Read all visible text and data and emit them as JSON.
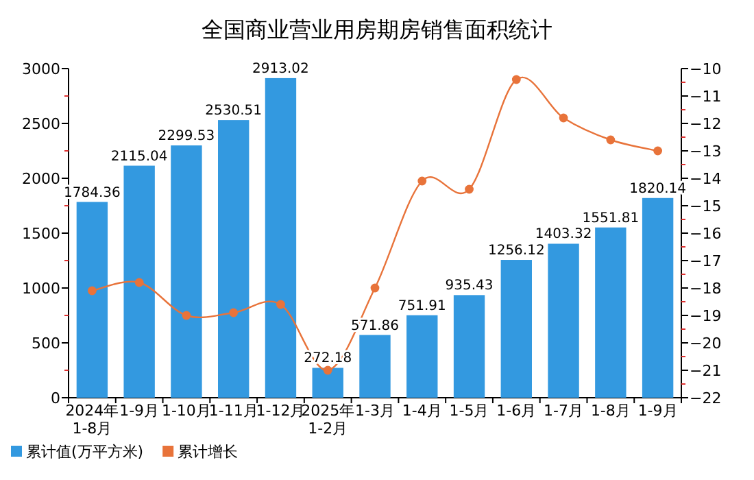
{
  "chart_data": {
    "type": "bar",
    "title": "全国商业营业用房期房销售面积统计",
    "categories": [
      "2024年\n1-8月",
      "1-9月",
      "1-10月",
      "1-11月",
      "1-12月",
      "2025年\n1-2月",
      "1-3月",
      "1-4月",
      "1-5月",
      "1-6月",
      "1-7月",
      "1-8月",
      "1-9月"
    ],
    "series": [
      {
        "name": "累计值(万平方米)",
        "color": "#3399e0",
        "values": [
          1784.36,
          2115.04,
          2299.53,
          2530.51,
          2913.02,
          272.18,
          571.86,
          751.91,
          935.43,
          1256.12,
          1403.32,
          1551.81,
          1820.14
        ],
        "value_labels": [
          "1784.36",
          "2115.04",
          "2299.53",
          "2530.51",
          "2913.02",
          "272.18",
          "571.86",
          "751.91",
          "935.43",
          "1256.12",
          "1403.32",
          "1551.81",
          "1820.14"
        ]
      },
      {
        "name": "累计增长",
        "type": "line",
        "axis": "y2",
        "color": "#e8733a",
        "marker": "circle",
        "values": [
          -18.1,
          -17.8,
          -19.0,
          -18.9,
          -18.6,
          -21.0,
          -18.0,
          -14.1,
          -14.4,
          -10.4,
          -11.8,
          -12.6,
          -13.0
        ]
      }
    ],
    "ylim": [
      0,
      3000
    ],
    "yticks": [
      0,
      {
        "value": 250,
        "label": null
      },
      500,
      {
        "value": 750,
        "label": null
      },
      1000,
      {
        "value": 1250,
        "label": null
      },
      1500,
      {
        "value": 1750,
        "label": null
      },
      2000,
      {
        "value": 2250,
        "label": null
      },
      2500,
      {
        "value": 2750,
        "label": null
      },
      3000
    ],
    "y2lim": [
      -22,
      -10
    ],
    "y2ticks": [
      -22,
      {
        "value": -21.5,
        "label": null
      },
      -21,
      {
        "value": -20.5,
        "label": null
      },
      -20,
      {
        "value": -19.5,
        "label": null
      },
      -19,
      {
        "value": -18.5,
        "label": null
      },
      -18,
      {
        "value": -17.5,
        "label": null
      },
      -17,
      {
        "value": -16.5,
        "label": null
      },
      -16,
      {
        "value": -15.5,
        "label": null
      },
      -15,
      {
        "value": -14.5,
        "label": null
      },
      -14,
      {
        "value": -13.5,
        "label": null
      },
      -13,
      {
        "value": -12.5,
        "label": null
      },
      -12,
      {
        "value": -11.5,
        "label": null
      },
      -11,
      {
        "value": -10.5,
        "label": null
      },
      -10
    ],
    "grid": false,
    "legend": "bottom left"
  }
}
